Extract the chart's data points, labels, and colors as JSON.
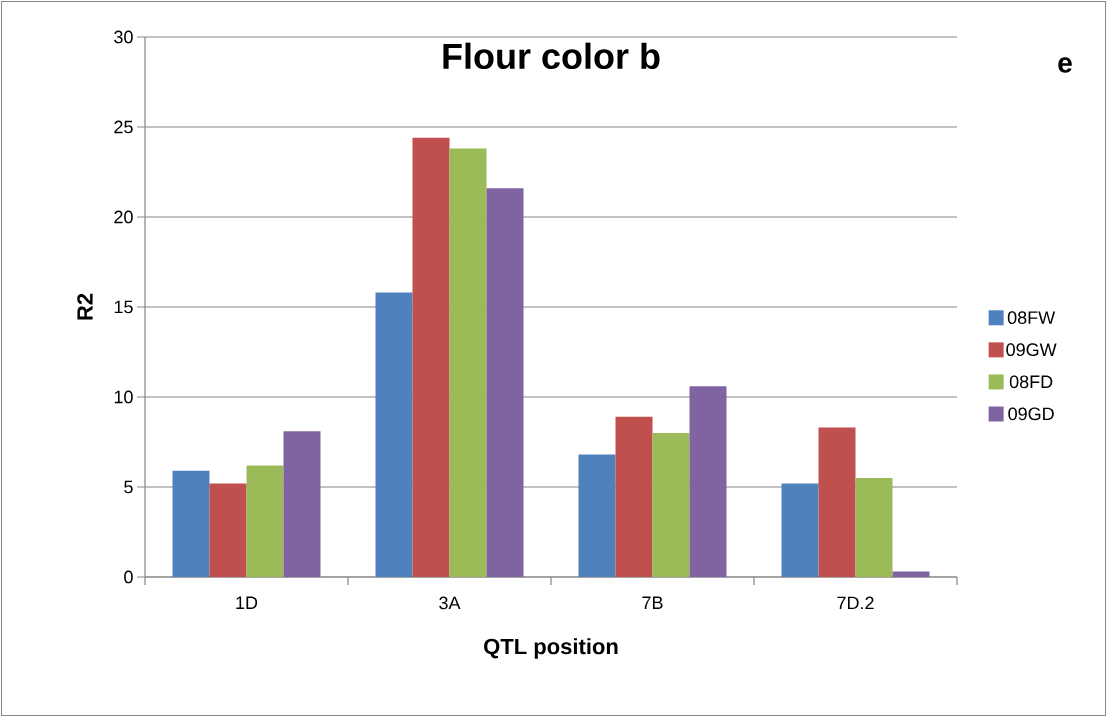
{
  "chart_data": {
    "type": "bar",
    "title": "Flour color b",
    "xlabel": "QTL position",
    "ylabel": "R2",
    "annotations": [
      "e"
    ],
    "categories": [
      "1D",
      "3A",
      "7B",
      "7D.2"
    ],
    "series": [
      {
        "name": "08FW",
        "color": "#4f81bd",
        "values": [
          5.9,
          15.8,
          6.8,
          5.2
        ]
      },
      {
        "name": "09GW",
        "color": "#c0504d",
        "values": [
          5.2,
          24.4,
          8.9,
          8.3
        ]
      },
      {
        "name": "08FD",
        "color": "#9bbb59",
        "values": [
          6.2,
          23.8,
          8.0,
          5.5
        ]
      },
      {
        "name": "09GD",
        "color": "#8064a2",
        "values": [
          8.1,
          21.6,
          10.6,
          0.3
        ]
      }
    ],
    "ylim": [
      0,
      30
    ],
    "yticks": [
      0,
      5,
      10,
      15,
      20,
      25,
      30
    ],
    "grid": "y",
    "legend": "right"
  }
}
